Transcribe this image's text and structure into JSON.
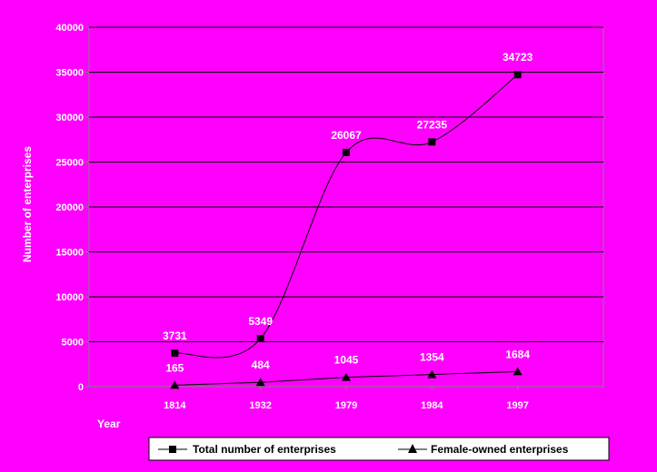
{
  "chart_data": {
    "type": "line",
    "xlabel": "Year",
    "ylabel": "Number of enterprises",
    "categories": [
      "1814",
      "1932",
      "1979",
      "1984",
      "1997"
    ],
    "ylim": [
      0,
      40000
    ],
    "yticks": [
      0,
      5000,
      10000,
      15000,
      20000,
      25000,
      30000,
      35000,
      40000
    ],
    "grid": true,
    "legend_position": "bottom",
    "series": [
      {
        "name": "Total number of enterprises",
        "values": [
          3731,
          5349,
          26067,
          27235,
          34723
        ],
        "labels": [
          "3731",
          "5349",
          "26067",
          "27235",
          "34723"
        ],
        "marker": "square",
        "smooth": true
      },
      {
        "name": "Female-owned enterprises",
        "values": [
          165,
          484,
          1045,
          1354,
          1684
        ],
        "labels": [
          "165",
          "484",
          "1045",
          "1354",
          "1684"
        ],
        "marker": "triangle",
        "smooth": false
      }
    ],
    "colors": {
      "background": "#ff00ff",
      "plot_area": "#ff00ff",
      "gridline": "#000000",
      "series_line": "#000000",
      "text": "#ffffff",
      "legend_background": "#ffffff"
    }
  }
}
